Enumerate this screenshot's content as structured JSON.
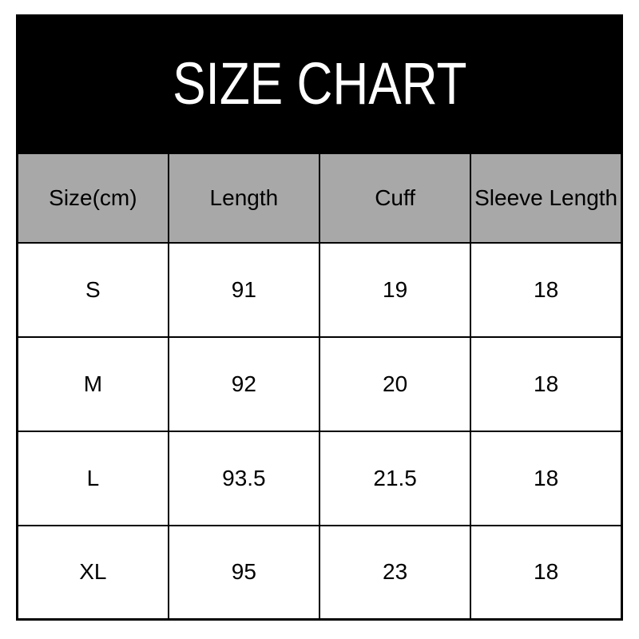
{
  "title_banner": {
    "text": "SIZE CHART"
  },
  "colors": {
    "banner_bg": "#000000",
    "banner_text": "#ffffff",
    "header_bg": "#a8a8a8",
    "row_bg": "#ffffff",
    "border": "#000000",
    "text": "#000000"
  },
  "chart_data": {
    "type": "table",
    "title": "SIZE CHART",
    "columns": [
      "Size(cm)",
      "Length",
      "Cuff",
      "Sleeve Length"
    ],
    "rows": [
      [
        "S",
        "91",
        "19",
        "18"
      ],
      [
        "M",
        "92",
        "20",
        "18"
      ],
      [
        "L",
        "93.5",
        "21.5",
        "18"
      ],
      [
        "XL",
        "95",
        "23",
        "18"
      ]
    ]
  }
}
